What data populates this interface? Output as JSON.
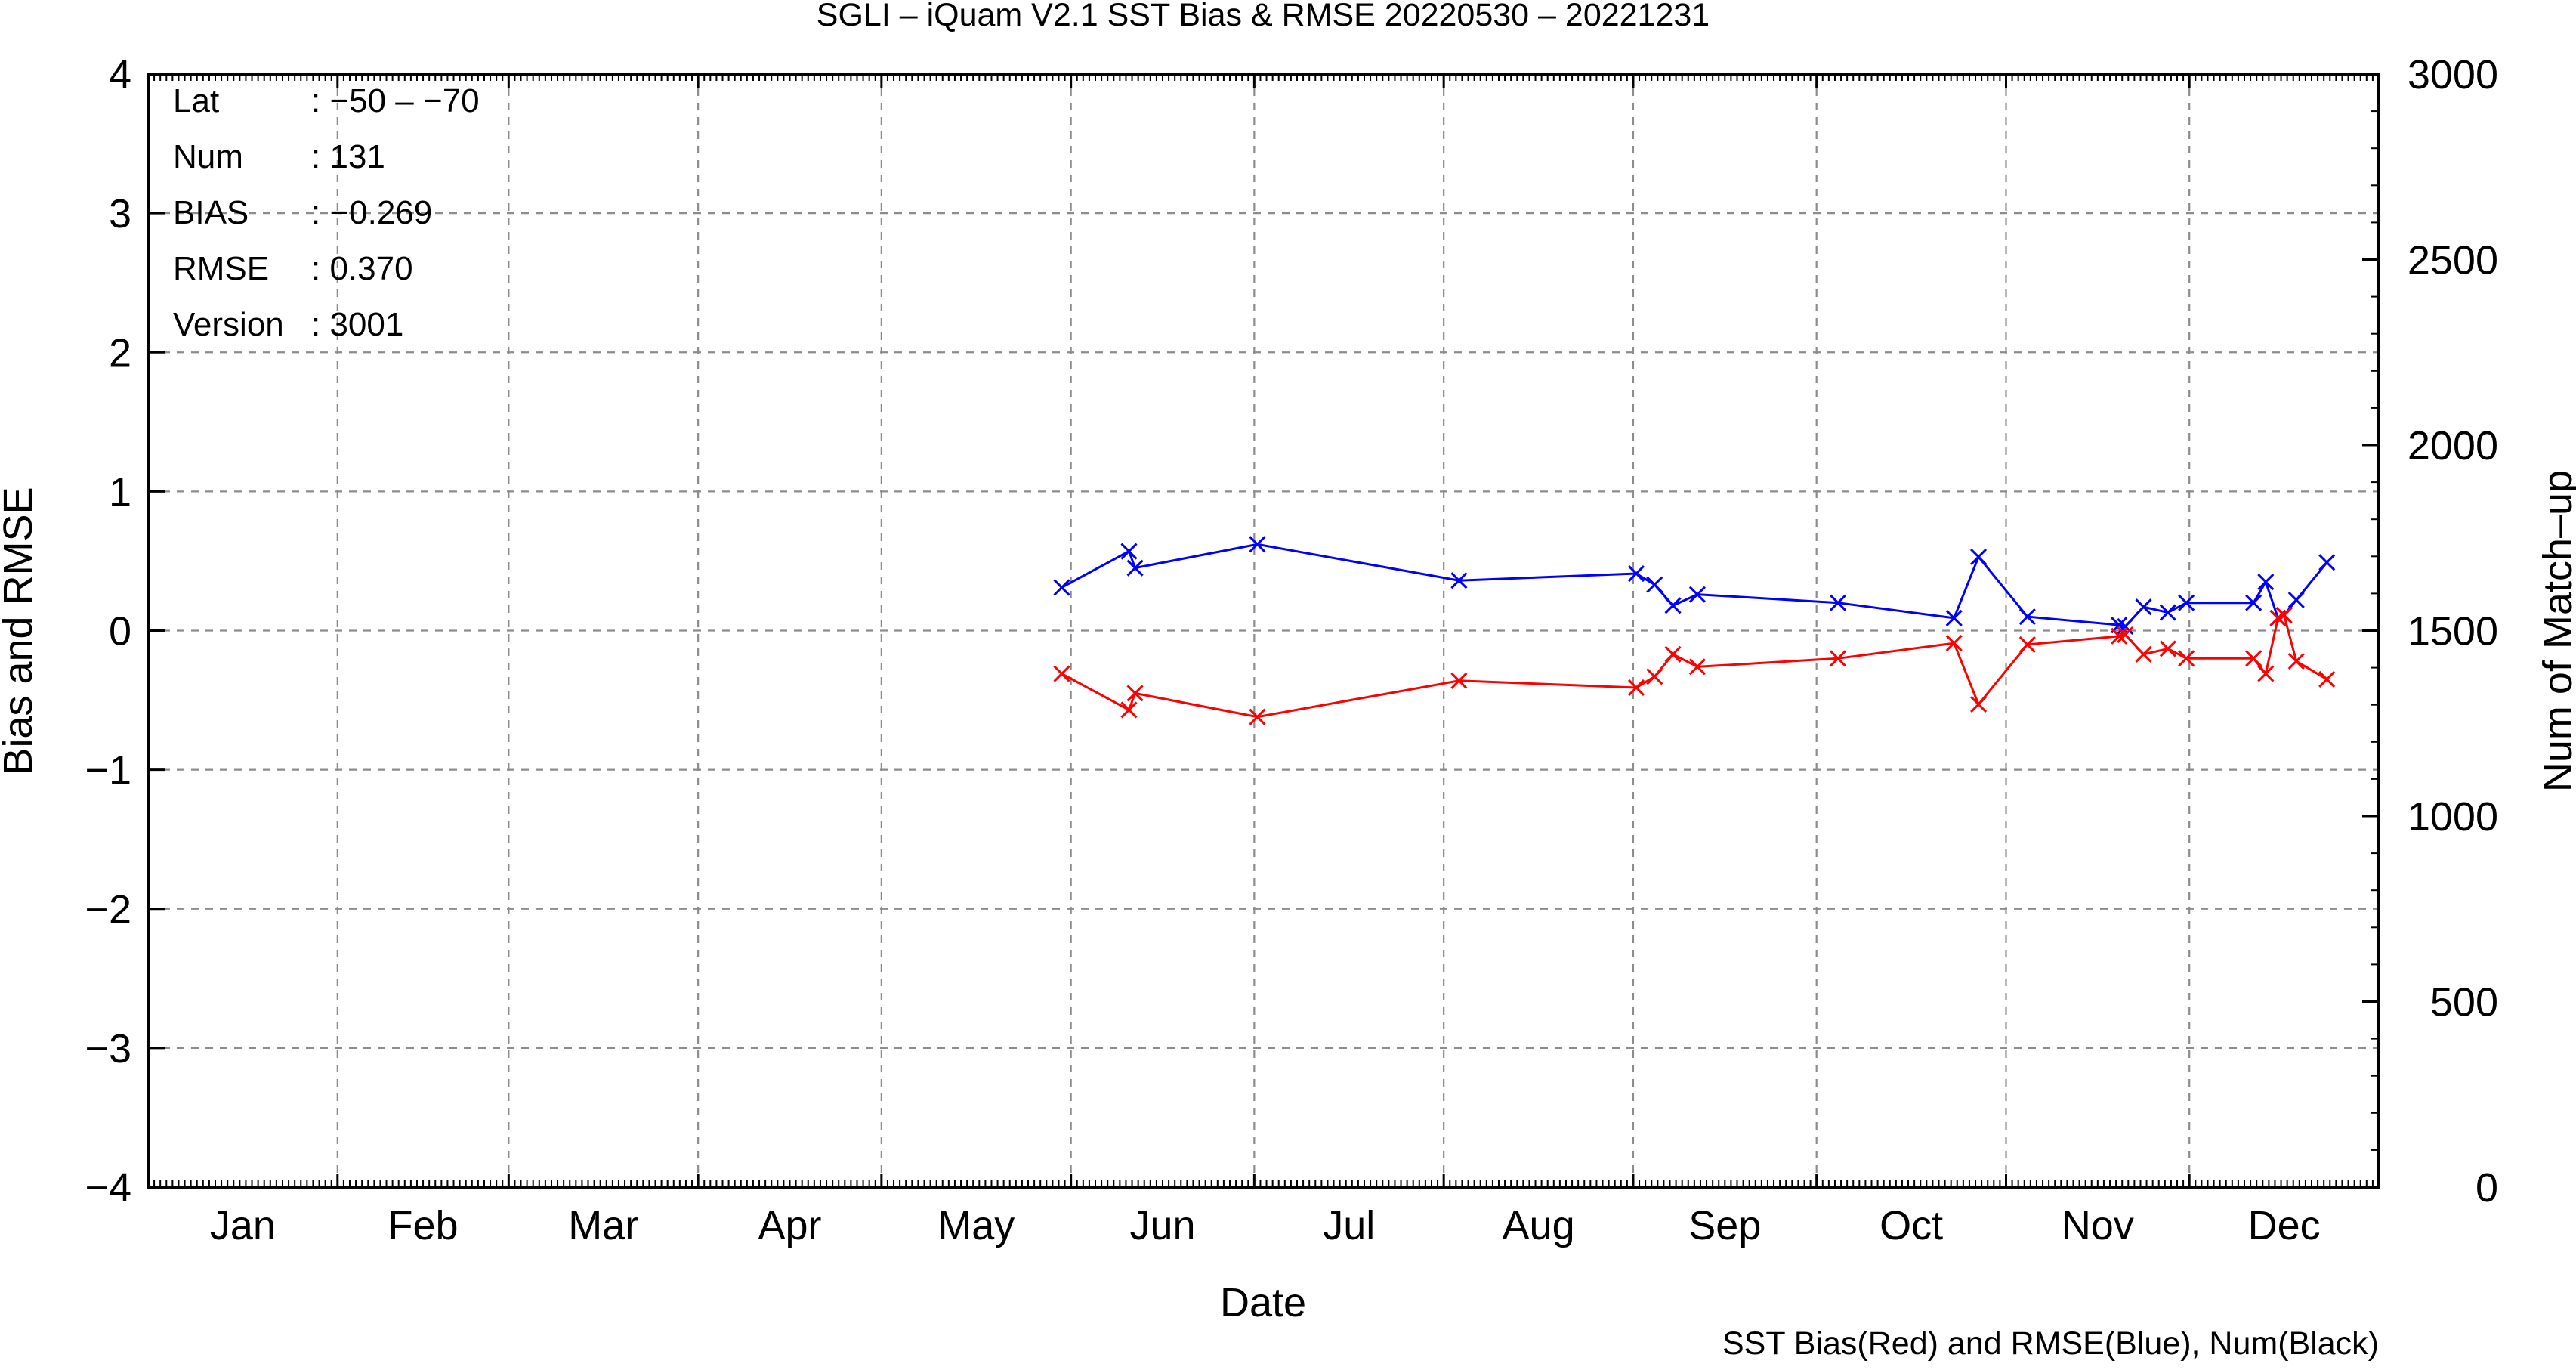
{
  "chart_data": {
    "type": "line",
    "title": "SGLI – iQuam V2.1 SST Bias & RMSE 20220530 – 20221231",
    "xlabel": "Date",
    "ylabel": "Bias and RMSE",
    "y2label": "Num of Match–up",
    "footer": "SST Bias(Red) and RMSE(Blue), Num(Black)",
    "x_tick_labels": [
      "Jan",
      "Feb",
      "Mar",
      "Apr",
      "May",
      "Jun",
      "Jul",
      "Aug",
      "Sep",
      "Oct",
      "Nov",
      "Dec"
    ],
    "y_tick_labels": [
      "4",
      "3",
      "2",
      "1",
      "0",
      "−1",
      "−2",
      "−3",
      "−4"
    ],
    "y2_tick_labels": [
      "3000",
      "2500",
      "2000",
      "1500",
      "1000",
      "500",
      "0"
    ],
    "ylim": [
      -4,
      4
    ],
    "y2lim": [
      0,
      3000
    ],
    "xlim": [
      "2022-01-01",
      "2022-12-31"
    ],
    "grid": true,
    "info": [
      {
        "key": "Lat",
        "value": ": −50 – −70"
      },
      {
        "key": "Num",
        "value": ": 131"
      },
      {
        "key": "BIAS",
        "value": ": −0.269"
      },
      {
        "key": "RMSE",
        "value": ": 0.370"
      },
      {
        "key": "Version",
        "value": ": 3001"
      }
    ],
    "series": [
      {
        "name": "RMSE",
        "color": "#0000ff",
        "x": [
          "2022-05-30",
          "2022-06-10",
          "2022-06-11",
          "2022-07-01",
          "2022-08-03",
          "2022-09-01",
          "2022-09-04",
          "2022-09-07",
          "2022-09-11",
          "2022-10-04",
          "2022-10-23",
          "2022-10-27",
          "2022-11-04",
          "2022-11-19",
          "2022-11-20",
          "2022-11-23",
          "2022-11-27",
          "2022-11-30",
          "2022-12-11",
          "2022-12-13",
          "2022-12-15",
          "2022-12-16",
          "2022-12-18",
          "2022-12-23"
        ],
        "values": [
          0.31,
          0.57,
          0.45,
          0.62,
          0.36,
          0.41,
          0.33,
          0.18,
          0.26,
          0.2,
          0.09,
          0.53,
          0.1,
          0.04,
          0.03,
          0.17,
          0.13,
          0.2,
          0.2,
          0.35,
          0.09,
          0.11,
          0.22,
          0.49
        ]
      },
      {
        "name": "BIAS",
        "color": "#ff0000",
        "x": [
          "2022-05-30",
          "2022-06-10",
          "2022-06-11",
          "2022-07-01",
          "2022-08-03",
          "2022-09-01",
          "2022-09-04",
          "2022-09-07",
          "2022-09-11",
          "2022-10-04",
          "2022-10-23",
          "2022-10-27",
          "2022-11-04",
          "2022-11-19",
          "2022-11-20",
          "2022-11-23",
          "2022-11-27",
          "2022-11-30",
          "2022-12-11",
          "2022-12-13",
          "2022-12-15",
          "2022-12-16",
          "2022-12-18",
          "2022-12-23"
        ],
        "values": [
          -0.31,
          -0.57,
          -0.45,
          -0.62,
          -0.36,
          -0.41,
          -0.33,
          -0.17,
          -0.26,
          -0.2,
          -0.09,
          -0.53,
          -0.1,
          -0.04,
          -0.03,
          -0.17,
          -0.13,
          -0.2,
          -0.2,
          -0.31,
          0.09,
          0.11,
          -0.22,
          -0.35
        ]
      }
    ]
  }
}
